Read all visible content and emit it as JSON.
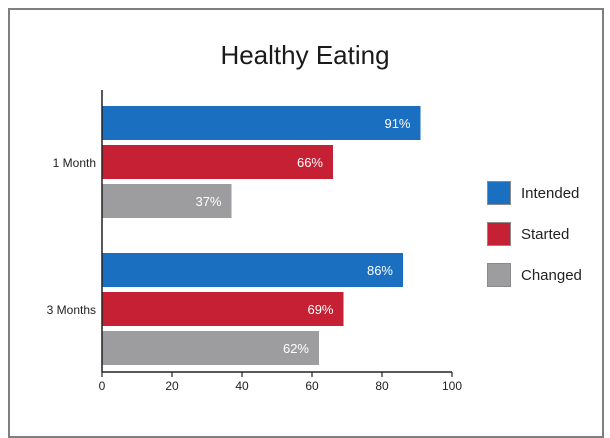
{
  "chart_data": {
    "type": "bar",
    "orientation": "horizontal",
    "title": "Healthy Eating",
    "categories": [
      "1 Month",
      "3 Months"
    ],
    "series": [
      {
        "name": "Intended",
        "color": "#1a6fc0",
        "values": [
          91,
          86
        ],
        "labels": [
          "91%",
          "86%"
        ]
      },
      {
        "name": "Started",
        "color": "#c52033",
        "values": [
          66,
          69
        ],
        "labels": [
          "66%",
          "69%"
        ]
      },
      {
        "name": "Changed",
        "color": "#9d9d9f",
        "values": [
          37,
          62
        ],
        "labels": [
          "37%",
          "62%"
        ]
      }
    ],
    "xlim": [
      0,
      100
    ],
    "xticks": [
      "0",
      "20",
      "40",
      "60",
      "80",
      "100"
    ],
    "grid": false,
    "legend_position": "right"
  }
}
